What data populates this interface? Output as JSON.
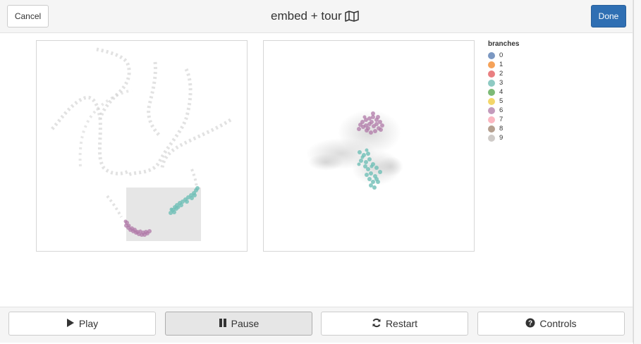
{
  "header": {
    "cancel_label": "Cancel",
    "title": "embed + tour",
    "title_icon": "map-icon",
    "done_label": "Done"
  },
  "colors": {
    "done_button": "#2f6fb3",
    "cluster_purple": "#b07aa8",
    "cluster_teal": "#6fbfb6",
    "background_points": "#c9c9c9"
  },
  "legend": {
    "title": "branches",
    "items": [
      {
        "label": "0",
        "color": "#7b98c2"
      },
      {
        "label": "1",
        "color": "#f5a259"
      },
      {
        "label": "2",
        "color": "#e97f81"
      },
      {
        "label": "3",
        "color": "#8ecac3"
      },
      {
        "label": "4",
        "color": "#7dba77"
      },
      {
        "label": "5",
        "color": "#f3d66a"
      },
      {
        "label": "6",
        "color": "#c39bbc"
      },
      {
        "label": "7",
        "color": "#fbb7c1"
      },
      {
        "label": "8",
        "color": "#b5a08f"
      },
      {
        "label": "9",
        "color": "#cfcbc8"
      }
    ]
  },
  "footer": {
    "play_label": "Play",
    "pause_label": "Pause",
    "restart_label": "Restart",
    "controls_label": "Controls"
  },
  "icons": {
    "play": "play-icon",
    "pause": "pause-icon",
    "restart": "refresh-icon",
    "controls": "question-circle-icon"
  }
}
